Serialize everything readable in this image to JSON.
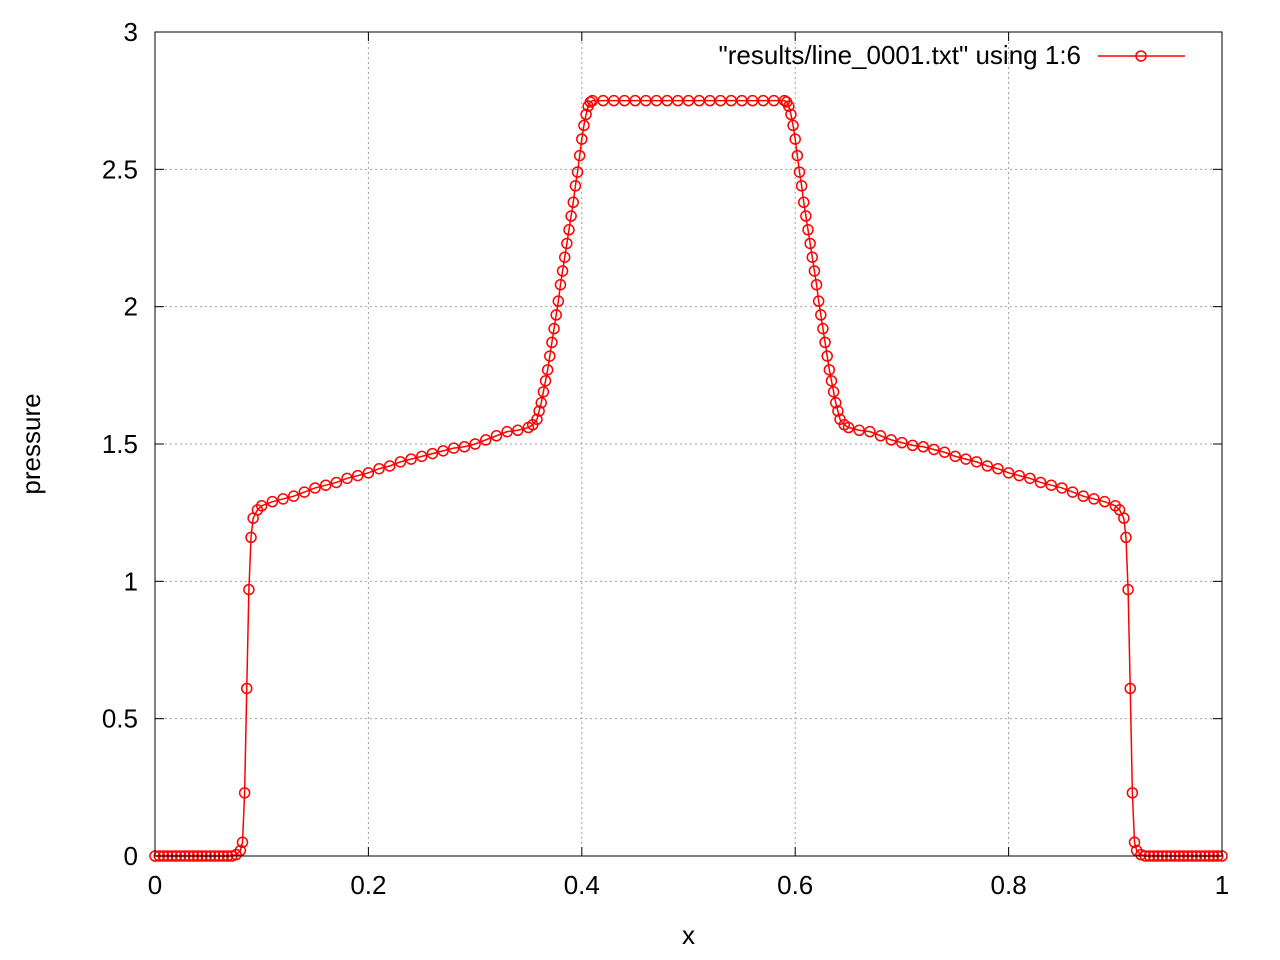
{
  "chart_data": {
    "type": "line",
    "title": "",
    "xlabel": "x",
    "ylabel": "pressure",
    "xlim": [
      0,
      1
    ],
    "ylim": [
      0,
      3
    ],
    "x_ticks": [
      "0",
      "0.2",
      "0.4",
      "0.6",
      "0.8",
      "1"
    ],
    "y_ticks": [
      "0",
      "0.5",
      "1",
      "1.5",
      "2",
      "2.5",
      "3"
    ],
    "grid": true,
    "legend_position": "top-right",
    "marker": "open-circle",
    "color": "#ff0000",
    "series": [
      {
        "name": "\"results/line_0001.txt\" using 1:6",
        "points": [
          [
            0.0,
            0.0
          ],
          [
            0.004,
            0.0
          ],
          [
            0.008,
            0.0
          ],
          [
            0.012,
            0.0
          ],
          [
            0.016,
            0.0
          ],
          [
            0.02,
            0.0
          ],
          [
            0.024,
            0.0
          ],
          [
            0.028,
            0.0
          ],
          [
            0.032,
            0.0
          ],
          [
            0.036,
            0.0
          ],
          [
            0.04,
            0.0
          ],
          [
            0.044,
            0.0
          ],
          [
            0.048,
            0.0
          ],
          [
            0.052,
            0.0
          ],
          [
            0.056,
            0.0
          ],
          [
            0.06,
            0.0
          ],
          [
            0.064,
            0.0
          ],
          [
            0.068,
            0.0
          ],
          [
            0.072,
            0.0
          ],
          [
            0.076,
            0.005
          ],
          [
            0.08,
            0.02
          ],
          [
            0.082,
            0.05
          ],
          [
            0.084,
            0.23
          ],
          [
            0.086,
            0.61
          ],
          [
            0.088,
            0.97
          ],
          [
            0.09,
            1.16
          ],
          [
            0.092,
            1.23
          ],
          [
            0.096,
            1.26
          ],
          [
            0.1,
            1.275
          ],
          [
            0.11,
            1.29
          ],
          [
            0.12,
            1.3
          ],
          [
            0.13,
            1.31
          ],
          [
            0.14,
            1.325
          ],
          [
            0.15,
            1.34
          ],
          [
            0.16,
            1.35
          ],
          [
            0.17,
            1.36
          ],
          [
            0.18,
            1.375
          ],
          [
            0.19,
            1.385
          ],
          [
            0.2,
            1.395
          ],
          [
            0.21,
            1.41
          ],
          [
            0.22,
            1.42
          ],
          [
            0.23,
            1.435
          ],
          [
            0.24,
            1.445
          ],
          [
            0.25,
            1.455
          ],
          [
            0.26,
            1.465
          ],
          [
            0.27,
            1.475
          ],
          [
            0.28,
            1.485
          ],
          [
            0.29,
            1.49
          ],
          [
            0.3,
            1.5
          ],
          [
            0.31,
            1.515
          ],
          [
            0.32,
            1.53
          ],
          [
            0.33,
            1.545
          ],
          [
            0.34,
            1.55
          ],
          [
            0.35,
            1.56
          ],
          [
            0.354,
            1.57
          ],
          [
            0.358,
            1.59
          ],
          [
            0.36,
            1.62
          ],
          [
            0.362,
            1.65
          ],
          [
            0.364,
            1.69
          ],
          [
            0.366,
            1.73
          ],
          [
            0.368,
            1.77
          ],
          [
            0.37,
            1.82
          ],
          [
            0.372,
            1.87
          ],
          [
            0.374,
            1.92
          ],
          [
            0.376,
            1.97
          ],
          [
            0.378,
            2.02
          ],
          [
            0.38,
            2.08
          ],
          [
            0.382,
            2.13
          ],
          [
            0.384,
            2.18
          ],
          [
            0.386,
            2.23
          ],
          [
            0.388,
            2.28
          ],
          [
            0.39,
            2.33
          ],
          [
            0.392,
            2.38
          ],
          [
            0.394,
            2.44
          ],
          [
            0.396,
            2.49
          ],
          [
            0.398,
            2.55
          ],
          [
            0.4,
            2.61
          ],
          [
            0.402,
            2.66
          ],
          [
            0.404,
            2.7
          ],
          [
            0.406,
            2.73
          ],
          [
            0.408,
            2.745
          ],
          [
            0.41,
            2.75
          ],
          [
            0.42,
            2.75
          ],
          [
            0.43,
            2.75
          ],
          [
            0.44,
            2.75
          ],
          [
            0.45,
            2.75
          ],
          [
            0.46,
            2.75
          ],
          [
            0.47,
            2.75
          ],
          [
            0.48,
            2.75
          ],
          [
            0.49,
            2.75
          ],
          [
            0.5,
            2.75
          ],
          [
            0.51,
            2.75
          ],
          [
            0.52,
            2.75
          ],
          [
            0.53,
            2.75
          ],
          [
            0.54,
            2.75
          ],
          [
            0.55,
            2.75
          ],
          [
            0.56,
            2.75
          ],
          [
            0.57,
            2.75
          ],
          [
            0.58,
            2.75
          ],
          [
            0.59,
            2.75
          ],
          [
            0.592,
            2.745
          ],
          [
            0.594,
            2.73
          ],
          [
            0.596,
            2.7
          ],
          [
            0.598,
            2.66
          ],
          [
            0.6,
            2.61
          ],
          [
            0.602,
            2.55
          ],
          [
            0.604,
            2.49
          ],
          [
            0.606,
            2.44
          ],
          [
            0.608,
            2.38
          ],
          [
            0.61,
            2.33
          ],
          [
            0.612,
            2.28
          ],
          [
            0.614,
            2.23
          ],
          [
            0.616,
            2.18
          ],
          [
            0.618,
            2.13
          ],
          [
            0.62,
            2.08
          ],
          [
            0.622,
            2.02
          ],
          [
            0.624,
            1.97
          ],
          [
            0.626,
            1.92
          ],
          [
            0.628,
            1.87
          ],
          [
            0.63,
            1.82
          ],
          [
            0.632,
            1.77
          ],
          [
            0.634,
            1.73
          ],
          [
            0.636,
            1.69
          ],
          [
            0.638,
            1.65
          ],
          [
            0.64,
            1.62
          ],
          [
            0.642,
            1.59
          ],
          [
            0.646,
            1.57
          ],
          [
            0.65,
            1.56
          ],
          [
            0.66,
            1.55
          ],
          [
            0.67,
            1.545
          ],
          [
            0.68,
            1.53
          ],
          [
            0.69,
            1.515
          ],
          [
            0.7,
            1.505
          ],
          [
            0.71,
            1.495
          ],
          [
            0.72,
            1.49
          ],
          [
            0.73,
            1.48
          ],
          [
            0.74,
            1.47
          ],
          [
            0.75,
            1.455
          ],
          [
            0.76,
            1.445
          ],
          [
            0.77,
            1.435
          ],
          [
            0.78,
            1.42
          ],
          [
            0.79,
            1.41
          ],
          [
            0.8,
            1.395
          ],
          [
            0.81,
            1.385
          ],
          [
            0.82,
            1.375
          ],
          [
            0.83,
            1.36
          ],
          [
            0.84,
            1.35
          ],
          [
            0.85,
            1.34
          ],
          [
            0.86,
            1.325
          ],
          [
            0.87,
            1.31
          ],
          [
            0.88,
            1.3
          ],
          [
            0.89,
            1.29
          ],
          [
            0.9,
            1.275
          ],
          [
            0.904,
            1.26
          ],
          [
            0.908,
            1.23
          ],
          [
            0.91,
            1.16
          ],
          [
            0.912,
            0.97
          ],
          [
            0.914,
            0.61
          ],
          [
            0.916,
            0.23
          ],
          [
            0.918,
            0.05
          ],
          [
            0.92,
            0.02
          ],
          [
            0.924,
            0.005
          ],
          [
            0.928,
            0.0
          ],
          [
            0.932,
            0.0
          ],
          [
            0.936,
            0.0
          ],
          [
            0.94,
            0.0
          ],
          [
            0.944,
            0.0
          ],
          [
            0.948,
            0.0
          ],
          [
            0.952,
            0.0
          ],
          [
            0.956,
            0.0
          ],
          [
            0.96,
            0.0
          ],
          [
            0.964,
            0.0
          ],
          [
            0.968,
            0.0
          ],
          [
            0.972,
            0.0
          ],
          [
            0.976,
            0.0
          ],
          [
            0.98,
            0.0
          ],
          [
            0.984,
            0.0
          ],
          [
            0.988,
            0.0
          ],
          [
            0.992,
            0.0
          ],
          [
            0.996,
            0.0
          ],
          [
            1.0,
            0.0
          ]
        ]
      }
    ]
  }
}
